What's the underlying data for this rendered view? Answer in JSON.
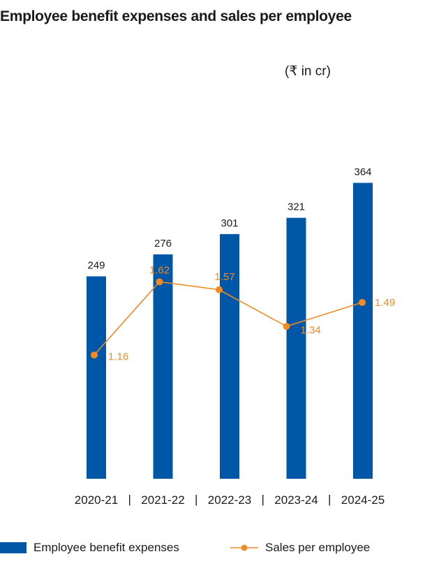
{
  "title": "Employee benefit expenses and sales per employee",
  "unit": "(₹ in cr)",
  "colors": {
    "bar": "#0057a8",
    "line": "#f08a24"
  },
  "legend": {
    "bar_label": "Employee benefit expenses",
    "line_label": "Sales per employee"
  },
  "chart_data": {
    "type": "bar",
    "title": "Employee benefit expenses and sales per employee",
    "subtitle": "(₹ in cr)",
    "categories": [
      "2020-21",
      "2021-22",
      "2022-23",
      "2023-24",
      "2024-25"
    ],
    "series": [
      {
        "name": "Employee benefit expenses",
        "type": "bar",
        "values": [
          249,
          276,
          301,
          321,
          364
        ]
      },
      {
        "name": "Sales per employee",
        "type": "line",
        "values": [
          1.16,
          1.62,
          1.57,
          1.34,
          1.49
        ]
      }
    ],
    "category_separator": "|",
    "grid": false,
    "legend_position": "bottom"
  }
}
